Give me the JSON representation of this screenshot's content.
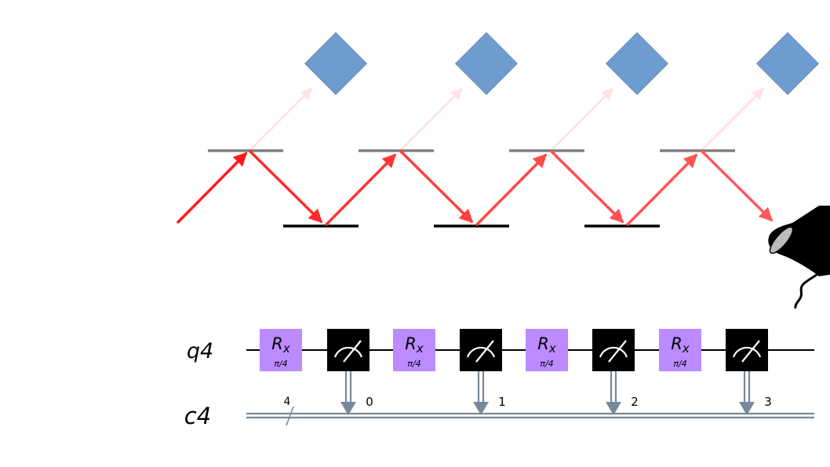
{
  "optics": {
    "stages": 4,
    "colors": {
      "detector_box": "#6f9ccf",
      "partial_mirror": "#808080",
      "full_mirror": "#000000",
      "beam_strong": "#ff2020",
      "beam_weak": "#ffe0e0",
      "detector": "#000000"
    }
  },
  "circuit": {
    "qubit_register": "q4",
    "classical_register": "c4",
    "classical_bus_width": "4",
    "gates": [
      {
        "name": "R",
        "sub": "x",
        "param": "π/4"
      },
      {
        "name": "R",
        "sub": "x",
        "param": "π/4"
      },
      {
        "name": "R",
        "sub": "x",
        "param": "π/4"
      },
      {
        "name": "R",
        "sub": "x",
        "param": "π/4"
      }
    ],
    "measurements": [
      "0",
      "1",
      "2",
      "3"
    ],
    "colors": {
      "gate_fill": "#bb8bff",
      "measure_fill": "#000000",
      "wire": "#000000",
      "classical_wire": "#778899"
    }
  }
}
